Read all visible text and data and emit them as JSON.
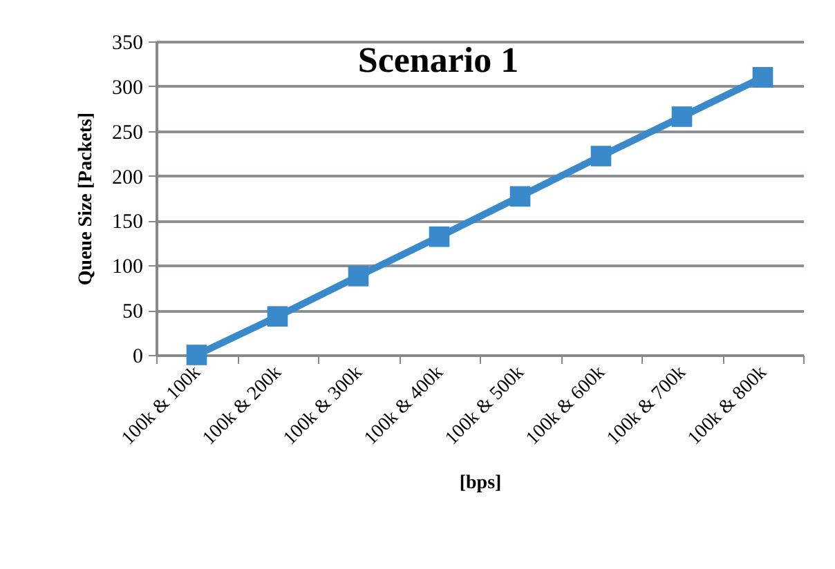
{
  "chart_data": {
    "type": "line",
    "title": "Scenario 1",
    "xlabel": "[bps]",
    "ylabel": "Queue Size  [Packets]",
    "categories": [
      "100k & 100k",
      "100k & 200k",
      "100k & 300k",
      "100k & 400k",
      "100k & 500k",
      "100k & 600k",
      "100k & 700k",
      "100k & 800k"
    ],
    "series": [
      {
        "color": "#3a8acb",
        "values": [
          0,
          43,
          88,
          132,
          177,
          222,
          266,
          310
        ]
      }
    ],
    "ylim": [
      0,
      350
    ],
    "yticks": [
      0,
      50,
      100,
      150,
      200,
      250,
      300,
      350
    ],
    "grid": "y",
    "marker": "square",
    "line_style": "solid",
    "legend": false
  }
}
